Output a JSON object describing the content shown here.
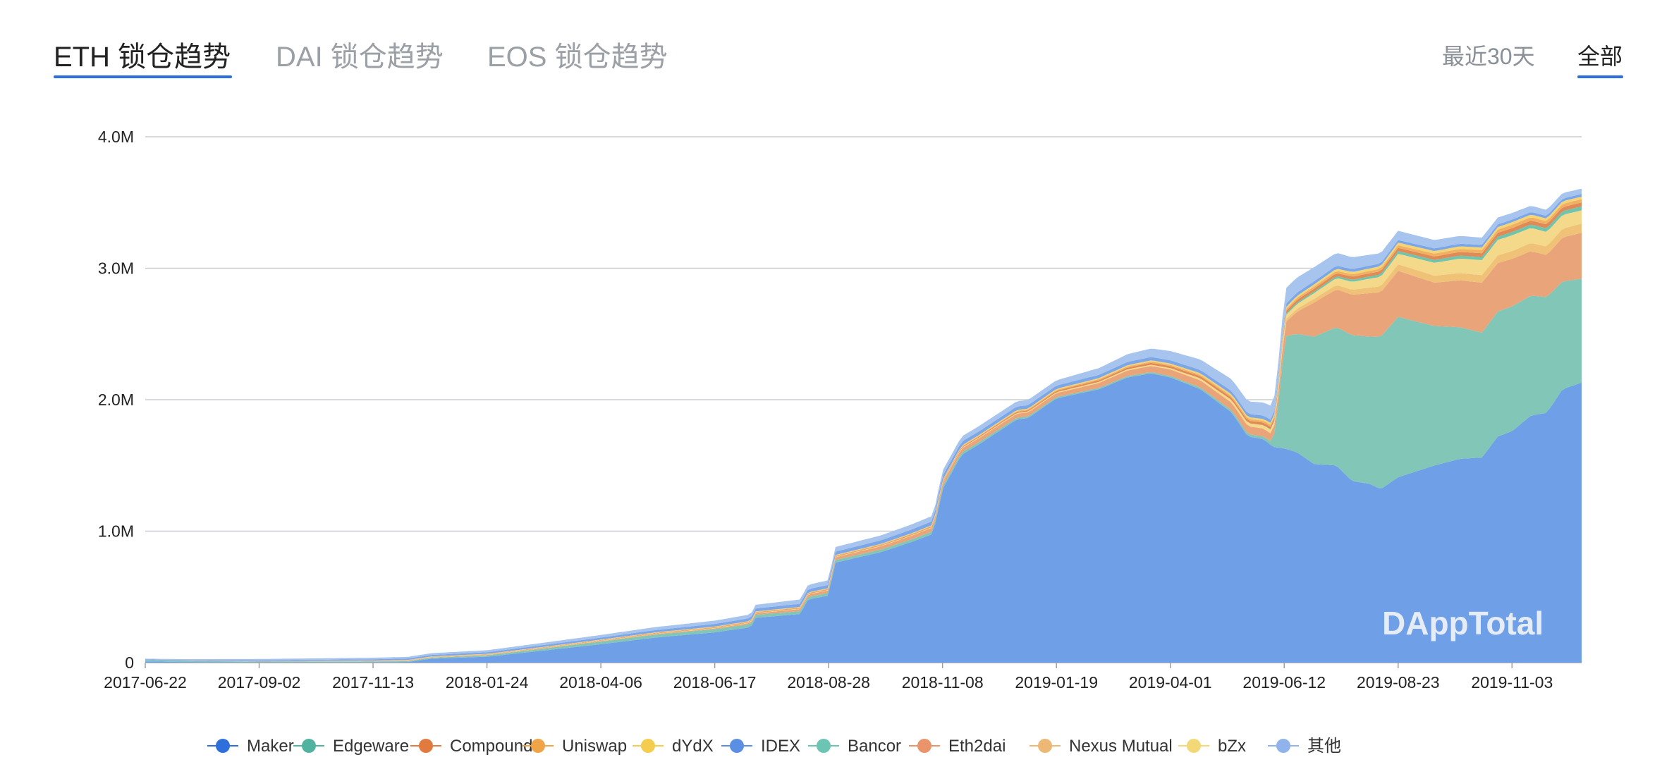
{
  "tabs": [
    {
      "label": "ETH 锁仓趋势",
      "active": true
    },
    {
      "label": "DAI 锁仓趋势",
      "active": false
    },
    {
      "label": "EOS 锁仓趋势",
      "active": false
    }
  ],
  "range_options": [
    {
      "label": "最近30天",
      "active": false
    },
    {
      "label": "全部",
      "active": true
    }
  ],
  "watermark": "DAppTotal",
  "colors": {
    "accent": "#2f6fdb",
    "active_text": "#222222",
    "inactive_text": "#9aa0a6"
  },
  "chart_data": {
    "type": "area",
    "stacked": true,
    "x": [
      "2017-06-22",
      "2017-09-02",
      "2017-11-13",
      "2018-01-24",
      "2018-04-06",
      "2018-06-17",
      "2018-08-28",
      "2018-11-08",
      "2019-01-19",
      "2019-04-01",
      "2019-06-12",
      "2019-08-23",
      "2019-11-03"
    ],
    "x_end": "2019-12-17",
    "y_ticks": [
      {
        "value": 0,
        "label": "0"
      },
      {
        "value": 1000000,
        "label": "1.0M"
      },
      {
        "value": 2000000,
        "label": "2.0M"
      },
      {
        "value": 3000000,
        "label": "3.0M"
      },
      {
        "value": 4000000,
        "label": "4.0M"
      }
    ],
    "ylim": [
      0,
      4000000
    ],
    "grid": true,
    "legend_position": "bottom",
    "series": [
      {
        "name": "Maker",
        "color": "#6f9fe6",
        "points": [
          [
            "2017-06-22",
            10000
          ],
          [
            "2017-07-15",
            5000
          ],
          [
            "2017-09-02",
            3000
          ],
          [
            "2017-11-13",
            3000
          ],
          [
            "2017-12-05",
            5000
          ],
          [
            "2017-12-20",
            30000
          ],
          [
            "2018-01-24",
            45000
          ],
          [
            "2018-02-20",
            80000
          ],
          [
            "2018-04-06",
            140000
          ],
          [
            "2018-05-10",
            190000
          ],
          [
            "2018-06-17",
            230000
          ],
          [
            "2018-07-10",
            270000
          ],
          [
            "2018-07-12",
            340000
          ],
          [
            "2018-08-10",
            370000
          ],
          [
            "2018-08-15",
            480000
          ],
          [
            "2018-08-28",
            510000
          ],
          [
            "2018-09-01",
            760000
          ],
          [
            "2018-09-30",
            840000
          ],
          [
            "2018-10-20",
            920000
          ],
          [
            "2018-11-02",
            980000
          ],
          [
            "2018-11-08",
            1320000
          ],
          [
            "2018-11-20",
            1580000
          ],
          [
            "2018-12-01",
            1660000
          ],
          [
            "2018-12-25",
            1850000
          ],
          [
            "2019-01-01",
            1860000
          ],
          [
            "2019-01-19",
            2010000
          ],
          [
            "2019-02-15",
            2080000
          ],
          [
            "2019-03-05",
            2170000
          ],
          [
            "2019-03-20",
            2200000
          ],
          [
            "2019-04-01",
            2170000
          ],
          [
            "2019-04-20",
            2080000
          ],
          [
            "2019-05-10",
            1900000
          ],
          [
            "2019-05-20",
            1720000
          ],
          [
            "2019-05-30",
            1700000
          ],
          [
            "2019-06-05",
            1640000
          ],
          [
            "2019-06-12",
            1630000
          ],
          [
            "2019-06-20",
            1600000
          ],
          [
            "2019-07-01",
            1510000
          ],
          [
            "2019-07-15",
            1500000
          ],
          [
            "2019-07-25",
            1380000
          ],
          [
            "2019-08-05",
            1360000
          ],
          [
            "2019-08-12",
            1320000
          ],
          [
            "2019-08-23",
            1410000
          ],
          [
            "2019-09-15",
            1500000
          ],
          [
            "2019-10-01",
            1550000
          ],
          [
            "2019-10-15",
            1560000
          ],
          [
            "2019-10-25",
            1720000
          ],
          [
            "2019-11-03",
            1760000
          ],
          [
            "2019-11-15",
            1880000
          ],
          [
            "2019-11-25",
            1900000
          ],
          [
            "2019-12-05",
            2080000
          ],
          [
            "2019-12-17",
            2130000
          ]
        ]
      },
      {
        "name": "Bancor",
        "color": "#82c6b8",
        "points": [
          [
            "2017-06-22",
            10000
          ],
          [
            "2017-09-02",
            5000
          ],
          [
            "2017-11-13",
            5000
          ],
          [
            "2018-01-24",
            10000
          ],
          [
            "2018-04-06",
            20000
          ],
          [
            "2018-06-17",
            25000
          ],
          [
            "2018-08-28",
            20000
          ],
          [
            "2018-11-08",
            20000
          ],
          [
            "2019-01-19",
            10000
          ],
          [
            "2019-04-01",
            10000
          ],
          [
            "2019-05-30",
            20000
          ],
          [
            "2019-06-05",
            30000
          ],
          [
            "2019-06-10",
            500000
          ],
          [
            "2019-06-12",
            850000
          ],
          [
            "2019-07-01",
            970000
          ],
          [
            "2019-07-25",
            1110000
          ],
          [
            "2019-08-05",
            1120000
          ],
          [
            "2019-08-23",
            1220000
          ],
          [
            "2019-09-15",
            1060000
          ],
          [
            "2019-10-15",
            950000
          ],
          [
            "2019-11-03",
            950000
          ],
          [
            "2019-11-25",
            880000
          ],
          [
            "2019-12-05",
            820000
          ],
          [
            "2019-12-17",
            790000
          ]
        ]
      },
      {
        "name": "Eth2dai",
        "color": "#e9a47a",
        "points": [
          [
            "2017-06-22",
            0
          ],
          [
            "2018-06-17",
            5000
          ],
          [
            "2018-08-28",
            20000
          ],
          [
            "2018-11-08",
            30000
          ],
          [
            "2019-01-19",
            30000
          ],
          [
            "2019-04-01",
            50000
          ],
          [
            "2019-05-20",
            60000
          ],
          [
            "2019-06-05",
            60000
          ],
          [
            "2019-06-12",
            100000
          ],
          [
            "2019-07-01",
            260000
          ],
          [
            "2019-08-05",
            330000
          ],
          [
            "2019-08-23",
            350000
          ],
          [
            "2019-09-15",
            330000
          ],
          [
            "2019-10-15",
            380000
          ],
          [
            "2019-11-03",
            360000
          ],
          [
            "2019-11-25",
            320000
          ],
          [
            "2019-12-17",
            350000
          ]
        ]
      },
      {
        "name": "Nexus Mutual",
        "color": "#efc278",
        "points": [
          [
            "2017-06-22",
            0
          ],
          [
            "2019-06-05",
            0
          ],
          [
            "2019-06-12",
            20000
          ],
          [
            "2019-08-23",
            50000
          ],
          [
            "2019-11-03",
            60000
          ],
          [
            "2019-12-17",
            70000
          ]
        ]
      },
      {
        "name": "bZx",
        "color": "#f4d98a",
        "points": [
          [
            "2017-06-22",
            0
          ],
          [
            "2018-11-08",
            5000
          ],
          [
            "2019-04-01",
            10000
          ],
          [
            "2019-06-12",
            30000
          ],
          [
            "2019-08-23",
            80000
          ],
          [
            "2019-10-01",
            110000
          ],
          [
            "2019-11-03",
            120000
          ],
          [
            "2019-12-17",
            100000
          ]
        ]
      },
      {
        "name": "Edgeware",
        "color": "#6ec4ad",
        "points": [
          [
            "2017-06-22",
            0
          ],
          [
            "2019-05-30",
            0
          ],
          [
            "2019-06-12",
            10000
          ],
          [
            "2019-08-23",
            20000
          ],
          [
            "2019-11-03",
            25000
          ],
          [
            "2019-12-17",
            30000
          ]
        ]
      },
      {
        "name": "Compound",
        "color": "#e08a55",
        "points": [
          [
            "2017-06-22",
            0
          ],
          [
            "2018-11-08",
            5000
          ],
          [
            "2019-04-01",
            15000
          ],
          [
            "2019-06-12",
            20000
          ],
          [
            "2019-08-23",
            25000
          ],
          [
            "2019-11-03",
            30000
          ],
          [
            "2019-12-17",
            30000
          ]
        ]
      },
      {
        "name": "Uniswap",
        "color": "#f0b165",
        "points": [
          [
            "2017-06-22",
            0
          ],
          [
            "2018-11-08",
            5000
          ],
          [
            "2019-04-01",
            10000
          ],
          [
            "2019-06-12",
            15000
          ],
          [
            "2019-08-23",
            20000
          ],
          [
            "2019-11-03",
            25000
          ],
          [
            "2019-12-17",
            25000
          ]
        ]
      },
      {
        "name": "dYdX",
        "color": "#f6d471",
        "points": [
          [
            "2017-06-22",
            0
          ],
          [
            "2018-11-08",
            5000
          ],
          [
            "2019-04-01",
            10000
          ],
          [
            "2019-06-12",
            15000
          ],
          [
            "2019-08-23",
            20000
          ],
          [
            "2019-11-03",
            20000
          ],
          [
            "2019-12-17",
            20000
          ]
        ]
      },
      {
        "name": "IDEX",
        "color": "#7ba6e8",
        "points": [
          [
            "2017-06-22",
            5000
          ],
          [
            "2018-04-06",
            15000
          ],
          [
            "2018-08-28",
            25000
          ],
          [
            "2018-11-08",
            30000
          ],
          [
            "2019-01-19",
            25000
          ],
          [
            "2019-04-01",
            25000
          ],
          [
            "2019-06-12",
            25000
          ],
          [
            "2019-08-23",
            20000
          ],
          [
            "2019-11-03",
            20000
          ],
          [
            "2019-12-17",
            20000
          ]
        ]
      },
      {
        "name": "其他",
        "color": "#a6c4ee",
        "points": [
          [
            "2017-06-22",
            5000
          ],
          [
            "2018-01-24",
            15000
          ],
          [
            "2018-06-17",
            25000
          ],
          [
            "2018-08-28",
            35000
          ],
          [
            "2018-11-08",
            40000
          ],
          [
            "2019-01-19",
            40000
          ],
          [
            "2019-04-01",
            70000
          ],
          [
            "2019-05-10",
            90000
          ],
          [
            "2019-05-30",
            100000
          ],
          [
            "2019-06-12",
            120000
          ],
          [
            "2019-08-23",
            70000
          ],
          [
            "2019-11-03",
            50000
          ],
          [
            "2019-12-17",
            40000
          ]
        ]
      }
    ],
    "legend": [
      "Maker",
      "Edgeware",
      "Compound",
      "Uniswap",
      "dYdX",
      "IDEX",
      "Bancor",
      "Eth2dai",
      "Nexus Mutual",
      "bZx",
      "其他"
    ],
    "legend_colors": {
      "Maker": "#2f6fdb",
      "Edgeware": "#4fb39f",
      "Compound": "#e07a3e",
      "Uniswap": "#efa448",
      "dYdX": "#f4cd4f",
      "IDEX": "#5b8fe3",
      "Bancor": "#6cc4b3",
      "Eth2dai": "#e9946a",
      "Nexus Mutual": "#edb876",
      "bZx": "#f3d877",
      "其他": "#8fb3ea"
    }
  }
}
